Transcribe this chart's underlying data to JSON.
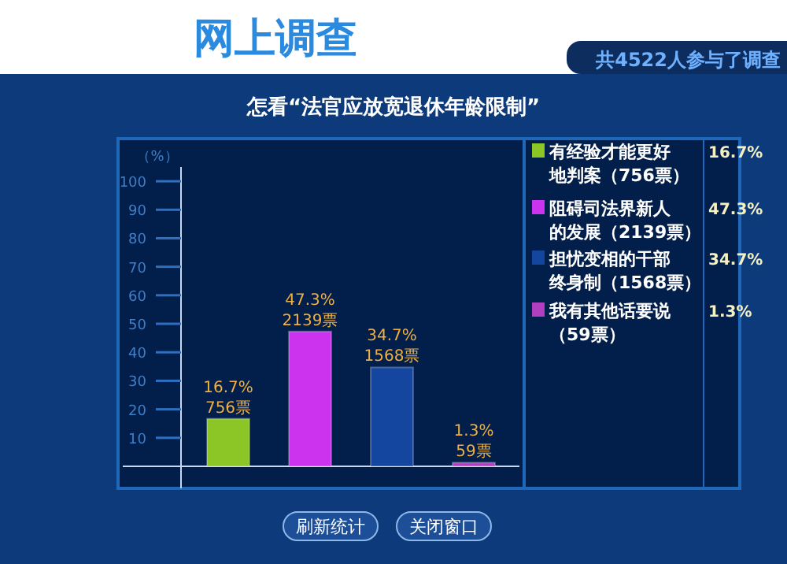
{
  "chart_data": {
    "type": "bar",
    "title": "怎看“法官应放宽退休年龄限制”",
    "subtitle": "共4522人参与了调查",
    "ylabel": "（%）",
    "categories": [
      null
    ],
    "series": [
      {
        "name": "有经验才能更好地判案（756票）",
        "color": "#8cc626",
        "values": [
          16.7
        ],
        "value_labels": [
          "16.7%"
        ]
      },
      {
        "name": "阻碍司法界新人的发展（2139票）",
        "color": "#cc33ee",
        "values": [
          47.3
        ],
        "value_labels": [
          "47.3%"
        ]
      },
      {
        "name": "担忧变相的干部终身制（1568票）",
        "color": "#1446a0",
        "values": [
          34.7
        ],
        "value_labels": [
          "34.7%"
        ]
      },
      {
        "name": "我有其他话要说（59票）",
        "color": "#b040c0",
        "values": [
          1.3
        ],
        "value_labels": [
          "1.3%"
        ]
      }
    ],
    "annotations": [
      {
        "text": "756票",
        "y": 16.7
      },
      {
        "text": "2139票",
        "y": 47.3
      },
      {
        "text": "1568票",
        "y": 34.7
      },
      {
        "text": "59票",
        "y": 1.3
      },
      "网上调查",
      "刷新统计",
      "关闭窗口"
    ],
    "ylim": [
      0,
      105
    ],
    "yticks": [
      10,
      20,
      30,
      40,
      50,
      60,
      70,
      80,
      90,
      100
    ],
    "legend": "right"
  }
}
